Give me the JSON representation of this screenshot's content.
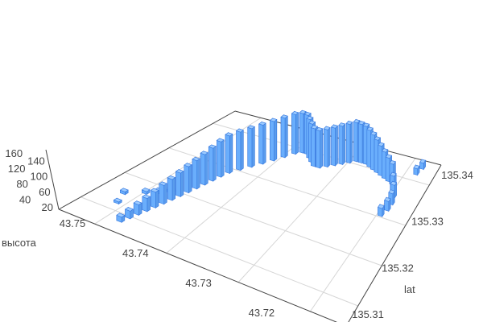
{
  "chart_data": {
    "type": "bar3d",
    "title": "",
    "xlabel": "",
    "ylabel": "lat",
    "zlabel": "высота",
    "xlim": [
      43.755,
      43.715
    ],
    "ylim": [
      135.305,
      135.345
    ],
    "zlim": [
      0,
      160
    ],
    "x_ticks": [
      "43.75",
      "43.74",
      "43.73",
      "43.72"
    ],
    "y_ticks": [
      "135.31",
      "135.32",
      "135.33",
      "135.34"
    ],
    "z_ticks": [
      "20",
      "40",
      "60",
      "80",
      "100",
      "120",
      "140",
      "160"
    ],
    "grid": true,
    "bar_color": "#6aaefc",
    "bar_edge_color": "#3a7be0",
    "points": [
      [
        43.7518,
        135.315,
        8
      ],
      [
        43.751,
        135.3122,
        6
      ],
      [
        43.7498,
        135.317,
        8
      ],
      [
        43.7486,
        135.3182,
        8
      ],
      [
        43.7474,
        135.3194,
        8
      ],
      [
        43.7482,
        135.3082,
        15
      ],
      [
        43.7479,
        135.3098,
        22
      ],
      [
        43.7476,
        135.3114,
        30
      ],
      [
        43.7473,
        135.313,
        38
      ],
      [
        43.747,
        135.3146,
        46
      ],
      [
        43.7467,
        135.3162,
        55
      ],
      [
        43.7464,
        135.3178,
        62
      ],
      [
        43.7461,
        135.3194,
        70
      ],
      [
        43.7458,
        135.321,
        78
      ],
      [
        43.7455,
        135.3226,
        85
      ],
      [
        43.7452,
        135.3242,
        92
      ],
      [
        43.7449,
        135.3258,
        100
      ],
      [
        43.7446,
        135.3274,
        108
      ],
      [
        43.7442,
        135.329,
        115
      ],
      [
        43.7434,
        135.3306,
        118
      ],
      [
        43.7425,
        135.3322,
        120
      ],
      [
        43.7416,
        135.3338,
        122
      ],
      [
        43.7407,
        135.3354,
        124
      ],
      [
        43.7398,
        135.337,
        125
      ],
      [
        43.7389,
        135.3386,
        126
      ],
      [
        43.738,
        135.3394,
        126
      ],
      [
        43.7371,
        135.3394,
        125
      ],
      [
        43.7362,
        135.3386,
        124
      ],
      [
        43.7353,
        135.3378,
        122
      ],
      [
        43.7344,
        135.337,
        120
      ],
      [
        43.7335,
        135.337,
        118
      ],
      [
        43.7326,
        135.3378,
        118
      ],
      [
        43.7317,
        135.3386,
        120
      ],
      [
        43.7308,
        135.3394,
        122
      ],
      [
        43.7299,
        135.3402,
        124
      ],
      [
        43.729,
        135.341,
        125
      ],
      [
        43.7281,
        135.341,
        124
      ],
      [
        43.7272,
        135.341,
        122
      ],
      [
        43.7263,
        135.3406,
        118
      ],
      [
        43.7254,
        135.3402,
        112
      ],
      [
        43.7245,
        135.3398,
        105
      ],
      [
        43.7236,
        135.3394,
        95
      ],
      [
        43.7227,
        135.339,
        85
      ],
      [
        43.7218,
        135.3386,
        75
      ],
      [
        43.7209,
        135.3382,
        65
      ],
      [
        43.7202,
        135.337,
        45
      ],
      [
        43.7194,
        135.3354,
        40
      ],
      [
        43.719,
        135.3338,
        35
      ],
      [
        43.719,
        135.3322,
        30
      ],
      [
        43.7194,
        135.3306,
        25
      ],
      [
        43.7182,
        135.3418,
        20
      ],
      [
        43.7178,
        135.3434,
        20
      ]
    ]
  }
}
